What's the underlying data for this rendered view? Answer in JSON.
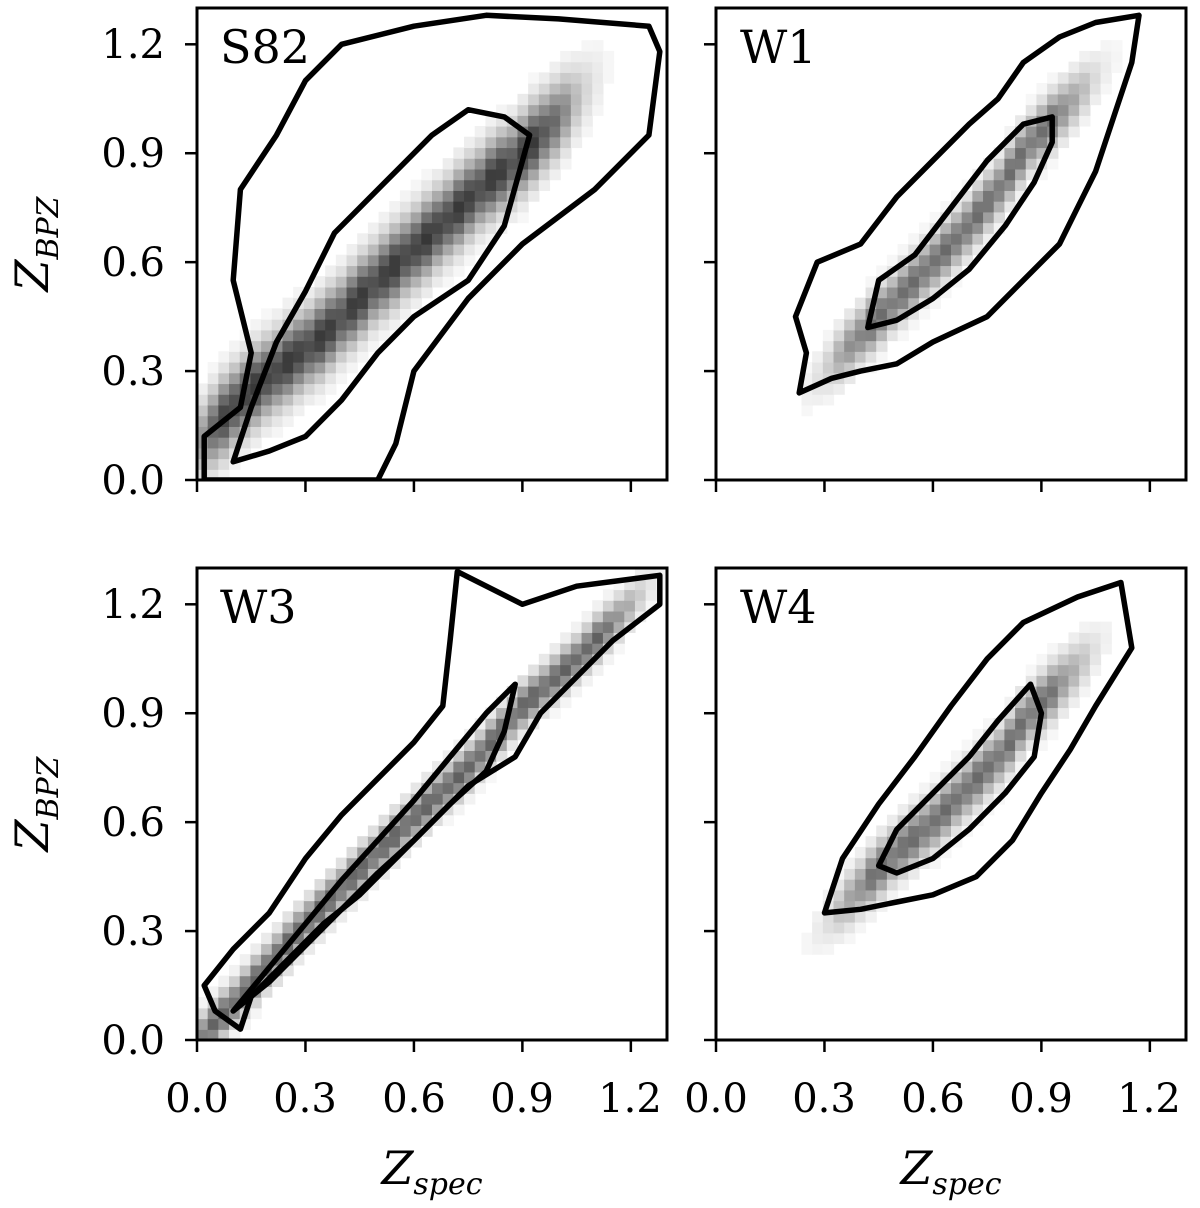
{
  "figure": {
    "ylabel": {
      "main": "Z",
      "sub": "BPZ"
    },
    "xlabel": {
      "main": "Z",
      "sub": "spec"
    }
  },
  "chart_data": [
    {
      "type": "heatmap",
      "panel": "S82",
      "xlim": [
        0.0,
        1.3
      ],
      "ylim": [
        0.0,
        1.3
      ],
      "xticks": [
        "0.0",
        "0.3",
        "0.6",
        "0.9",
        "1.2"
      ],
      "yticks": [
        "0.0",
        "0.3",
        "0.6",
        "0.9",
        "1.2"
      ],
      "ridge": [
        [
          0.15,
          0.25
        ],
        [
          0.35,
          0.4
        ],
        [
          0.5,
          0.55
        ],
        [
          0.65,
          0.68
        ],
        [
          0.8,
          0.82
        ],
        [
          0.88,
          0.88
        ]
      ],
      "width_y": 0.07,
      "intensity": 1.0,
      "outer_contour": [
        [
          0.02,
          0.0
        ],
        [
          0.02,
          0.12
        ],
        [
          0.12,
          0.2
        ],
        [
          0.15,
          0.35
        ],
        [
          0.1,
          0.55
        ],
        [
          0.12,
          0.8
        ],
        [
          0.22,
          0.95
        ],
        [
          0.3,
          1.1
        ],
        [
          0.4,
          1.2
        ],
        [
          0.6,
          1.25
        ],
        [
          0.8,
          1.28
        ],
        [
          1.0,
          1.27
        ],
        [
          1.25,
          1.25
        ],
        [
          1.28,
          1.18
        ],
        [
          1.25,
          0.95
        ],
        [
          1.1,
          0.8
        ],
        [
          0.9,
          0.65
        ],
        [
          0.75,
          0.5
        ],
        [
          0.6,
          0.3
        ],
        [
          0.55,
          0.1
        ],
        [
          0.5,
          0.0
        ]
      ],
      "inner_contour": [
        [
          0.1,
          0.05
        ],
        [
          0.15,
          0.2
        ],
        [
          0.22,
          0.38
        ],
        [
          0.3,
          0.52
        ],
        [
          0.38,
          0.68
        ],
        [
          0.45,
          0.75
        ],
        [
          0.55,
          0.85
        ],
        [
          0.65,
          0.95
        ],
        [
          0.75,
          1.02
        ],
        [
          0.85,
          1.0
        ],
        [
          0.92,
          0.95
        ],
        [
          0.85,
          0.7
        ],
        [
          0.75,
          0.55
        ],
        [
          0.6,
          0.45
        ],
        [
          0.5,
          0.35
        ],
        [
          0.4,
          0.22
        ],
        [
          0.3,
          0.12
        ],
        [
          0.2,
          0.08
        ]
      ]
    },
    {
      "type": "heatmap",
      "panel": "W1",
      "xlim": [
        0.0,
        1.3
      ],
      "ylim": [
        0.0,
        1.3
      ],
      "xticks": [
        "0.0",
        "0.3",
        "0.6",
        "0.9",
        "1.2"
      ],
      "yticks": [
        "0.0",
        "0.3",
        "0.6",
        "0.9",
        "1.2"
      ],
      "ridge": [
        [
          0.48,
          0.48
        ],
        [
          0.58,
          0.58
        ],
        [
          0.68,
          0.68
        ],
        [
          0.78,
          0.8
        ],
        [
          0.86,
          0.92
        ]
      ],
      "width_y": 0.05,
      "intensity": 0.75,
      "outer_contour": [
        [
          0.23,
          0.24
        ],
        [
          0.25,
          0.35
        ],
        [
          0.22,
          0.45
        ],
        [
          0.28,
          0.6
        ],
        [
          0.4,
          0.65
        ],
        [
          0.5,
          0.78
        ],
        [
          0.6,
          0.88
        ],
        [
          0.7,
          0.98
        ],
        [
          0.78,
          1.05
        ],
        [
          0.85,
          1.15
        ],
        [
          0.95,
          1.22
        ],
        [
          1.05,
          1.26
        ],
        [
          1.17,
          1.28
        ],
        [
          1.15,
          1.15
        ],
        [
          1.1,
          1.0
        ],
        [
          1.05,
          0.85
        ],
        [
          1.0,
          0.75
        ],
        [
          0.95,
          0.65
        ],
        [
          0.85,
          0.55
        ],
        [
          0.75,
          0.45
        ],
        [
          0.6,
          0.38
        ],
        [
          0.5,
          0.32
        ],
        [
          0.4,
          0.3
        ],
        [
          0.32,
          0.28
        ]
      ],
      "inner_contour": [
        [
          0.42,
          0.42
        ],
        [
          0.45,
          0.55
        ],
        [
          0.55,
          0.62
        ],
        [
          0.65,
          0.75
        ],
        [
          0.75,
          0.88
        ],
        [
          0.85,
          0.98
        ],
        [
          0.93,
          1.0
        ],
        [
          0.93,
          0.93
        ],
        [
          0.88,
          0.82
        ],
        [
          0.8,
          0.7
        ],
        [
          0.7,
          0.58
        ],
        [
          0.6,
          0.5
        ],
        [
          0.5,
          0.44
        ]
      ]
    },
    {
      "type": "heatmap",
      "panel": "W3",
      "xlim": [
        0.0,
        1.3
      ],
      "ylim": [
        0.0,
        1.3
      ],
      "xticks": [
        "0.0",
        "0.3",
        "0.6",
        "0.9",
        "1.2"
      ],
      "yticks": [
        "0.0",
        "0.3",
        "0.6",
        "0.9",
        "1.2"
      ],
      "ridge": [
        [
          0.1,
          0.1
        ],
        [
          0.3,
          0.32
        ],
        [
          0.5,
          0.52
        ],
        [
          0.65,
          0.66
        ],
        [
          0.75,
          0.75
        ],
        [
          0.9,
          0.92
        ],
        [
          1.05,
          1.05
        ]
      ],
      "width_y": 0.04,
      "intensity": 0.8,
      "outer_contour": [
        [
          0.02,
          0.15
        ],
        [
          0.1,
          0.25
        ],
        [
          0.2,
          0.35
        ],
        [
          0.3,
          0.5
        ],
        [
          0.4,
          0.62
        ],
        [
          0.5,
          0.72
        ],
        [
          0.6,
          0.82
        ],
        [
          0.68,
          0.92
        ],
        [
          0.7,
          1.1
        ],
        [
          0.72,
          1.29
        ],
        [
          0.9,
          1.2
        ],
        [
          1.05,
          1.25
        ],
        [
          1.28,
          1.28
        ],
        [
          1.28,
          1.2
        ],
        [
          1.15,
          1.1
        ],
        [
          1.05,
          1.0
        ],
        [
          0.95,
          0.9
        ],
        [
          0.88,
          0.78
        ],
        [
          0.75,
          0.7
        ],
        [
          0.65,
          0.6
        ],
        [
          0.55,
          0.5
        ],
        [
          0.45,
          0.4
        ],
        [
          0.35,
          0.32
        ],
        [
          0.25,
          0.22
        ],
        [
          0.15,
          0.12
        ],
        [
          0.12,
          0.03
        ],
        [
          0.05,
          0.08
        ]
      ],
      "inner_contour": [
        [
          0.1,
          0.08
        ],
        [
          0.2,
          0.2
        ],
        [
          0.3,
          0.32
        ],
        [
          0.4,
          0.44
        ],
        [
          0.5,
          0.55
        ],
        [
          0.6,
          0.66
        ],
        [
          0.7,
          0.78
        ],
        [
          0.8,
          0.9
        ],
        [
          0.88,
          0.98
        ],
        [
          0.85,
          0.85
        ],
        [
          0.8,
          0.74
        ],
        [
          0.7,
          0.65
        ],
        [
          0.6,
          0.55
        ],
        [
          0.5,
          0.46
        ],
        [
          0.4,
          0.36
        ],
        [
          0.3,
          0.26
        ],
        [
          0.2,
          0.16
        ]
      ]
    },
    {
      "type": "heatmap",
      "panel": "W4",
      "xlim": [
        0.0,
        1.3
      ],
      "ylim": [
        0.0,
        1.3
      ],
      "xticks": [
        "0.0",
        "0.3",
        "0.6",
        "0.9",
        "1.2"
      ],
      "yticks": [
        "0.0",
        "0.3",
        "0.6",
        "0.9",
        "1.2"
      ],
      "ridge": [
        [
          0.5,
          0.52
        ],
        [
          0.6,
          0.6
        ],
        [
          0.7,
          0.7
        ],
        [
          0.8,
          0.8
        ],
        [
          0.85,
          0.88
        ]
      ],
      "width_y": 0.05,
      "intensity": 0.75,
      "outer_contour": [
        [
          0.3,
          0.35
        ],
        [
          0.35,
          0.5
        ],
        [
          0.45,
          0.65
        ],
        [
          0.55,
          0.78
        ],
        [
          0.65,
          0.92
        ],
        [
          0.75,
          1.05
        ],
        [
          0.85,
          1.15
        ],
        [
          1.0,
          1.22
        ],
        [
          1.12,
          1.26
        ],
        [
          1.15,
          1.08
        ],
        [
          1.05,
          0.92
        ],
        [
          0.98,
          0.8
        ],
        [
          0.9,
          0.68
        ],
        [
          0.82,
          0.55
        ],
        [
          0.72,
          0.45
        ],
        [
          0.6,
          0.4
        ],
        [
          0.5,
          0.38
        ],
        [
          0.4,
          0.36
        ]
      ],
      "inner_contour": [
        [
          0.45,
          0.48
        ],
        [
          0.5,
          0.58
        ],
        [
          0.6,
          0.68
        ],
        [
          0.7,
          0.78
        ],
        [
          0.78,
          0.88
        ],
        [
          0.87,
          0.98
        ],
        [
          0.9,
          0.9
        ],
        [
          0.88,
          0.78
        ],
        [
          0.8,
          0.68
        ],
        [
          0.7,
          0.58
        ],
        [
          0.6,
          0.5
        ],
        [
          0.5,
          0.46
        ]
      ]
    }
  ]
}
